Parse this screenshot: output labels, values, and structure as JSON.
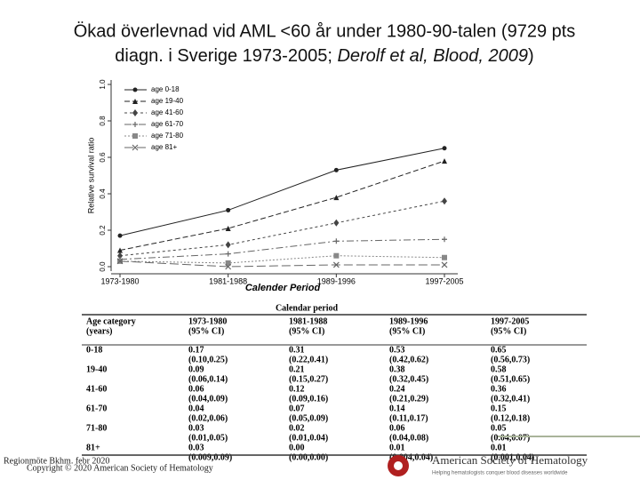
{
  "title": [
    "Ökad överlevnad vid AML <60 år under 1980-90-talen (9729 pts",
    "diagn. i Sverige 1973-2005; ",
    "Derolf et al, Blood, 2009",
    ")"
  ],
  "chart_data": {
    "type": "line",
    "y_label": "Relative survival ratio",
    "x_label": "Calender Period",
    "categories": [
      "1973-1980",
      "1981-1988",
      "1989-1996",
      "1997-2005"
    ],
    "ylim": [
      0,
      1
    ],
    "yticks": [
      {
        "value": 0,
        "label": "0.0"
      },
      0.2,
      0.4,
      0.6,
      0.8,
      {
        "value": 1,
        "label": "1.0"
      }
    ],
    "legend": "top-left",
    "series": [
      {
        "name": "age 0-18",
        "color": "#222222",
        "marker": "circle",
        "dash": "",
        "values": [
          0.17,
          0.31,
          0.53,
          0.65
        ]
      },
      {
        "name": "age 19-40",
        "color": "#222222",
        "marker": "triangle",
        "dash": "6 3",
        "values": [
          0.09,
          0.21,
          0.38,
          0.58
        ]
      },
      {
        "name": "age 41-60",
        "color": "#444444",
        "marker": "diamond",
        "dash": "3 3",
        "values": [
          0.06,
          0.12,
          0.24,
          0.36
        ]
      },
      {
        "name": "age 61-70",
        "color": "#666666",
        "marker": "plus",
        "dash": "8 3 2 3",
        "values": [
          0.04,
          0.07,
          0.14,
          0.15
        ]
      },
      {
        "name": "age 71-80",
        "color": "#888888",
        "marker": "square",
        "dash": "2 2",
        "values": [
          0.03,
          0.02,
          0.06,
          0.05
        ]
      },
      {
        "name": "age 81+",
        "color": "#666666",
        "marker": "cross",
        "dash": "10 4",
        "values": [
          0.03,
          0.0,
          0.01,
          0.01
        ]
      }
    ]
  },
  "table": {
    "title": "Calendar period",
    "columns": [
      [
        "Age category",
        "(years)"
      ],
      [
        "1973-1980",
        "(95% CI)"
      ],
      [
        "1981-1988",
        "(95% CI)"
      ],
      [
        "1989-1996",
        "(95% CI)"
      ],
      [
        "1997-2005",
        "(95% CI)"
      ]
    ],
    "rows": [
      {
        "label": "0-18",
        "cells": [
          [
            "0.17",
            "(0.10,0.25)"
          ],
          [
            "0.31",
            "(0.22,0.41)"
          ],
          [
            "0.53",
            "(0.42,0.62)"
          ],
          [
            "0.65",
            "(0.56,0.73)"
          ]
        ]
      },
      {
        "label": "19-40",
        "cells": [
          [
            "0.09",
            "(0.06,0.14)"
          ],
          [
            "0.21",
            "(0.15,0.27)"
          ],
          [
            "0.38",
            "(0.32,0.45)"
          ],
          [
            "0.58",
            "(0.51,0.65)"
          ]
        ]
      },
      {
        "label": "41-60",
        "cells": [
          [
            "0.06",
            "(0.04,0.09)"
          ],
          [
            "0.12",
            "(0.09,0.16)"
          ],
          [
            "0.24",
            "(0.21,0.29)"
          ],
          [
            "0.36",
            "(0.32,0.41)"
          ]
        ]
      },
      {
        "label": "61-70",
        "cells": [
          [
            "0.04",
            "(0.02,0.06)"
          ],
          [
            "0.07",
            "(0.05,0.09)"
          ],
          [
            "0.14",
            "(0.11,0.17)"
          ],
          [
            "0.15",
            "(0.12,0.18)"
          ]
        ]
      },
      {
        "label": "71-80",
        "cells": [
          [
            "0.03",
            "(0.01,0.05)"
          ],
          [
            "0.02",
            "(0.01,0.04)"
          ],
          [
            "0.06",
            "(0.04,0.08)"
          ],
          [
            "0.05",
            "(0.04,0.07)"
          ]
        ]
      },
      {
        "label": "81+",
        "cells": [
          [
            "0.03",
            "(0.009,0.09)"
          ],
          [
            "0.00",
            "(0.00,0.00)"
          ],
          [
            "0.01",
            "(0.004,0.04)"
          ],
          [
            "0.01",
            "(0.001,0.04)"
          ]
        ]
      }
    ]
  },
  "footer": {
    "meeting": "Regionmöte Bkhm. febr 2020",
    "copyright": "Copyright © 2020 American Society of Hematology",
    "logo": "American Society of Hematology",
    "tagline": "Helping hematologists conquer blood diseases worldwide"
  }
}
